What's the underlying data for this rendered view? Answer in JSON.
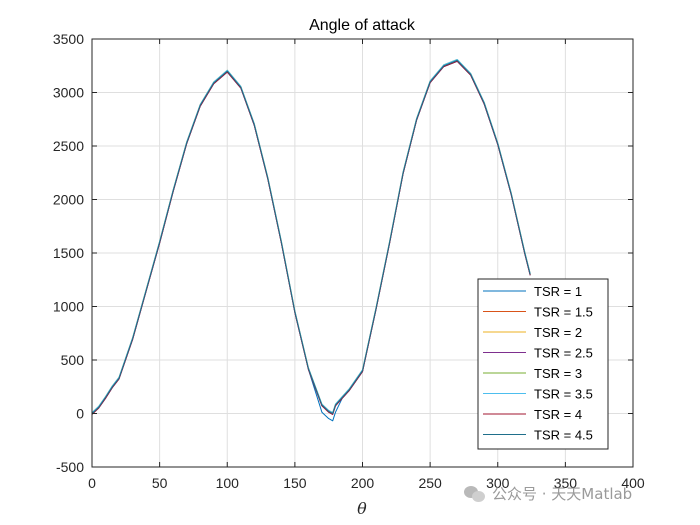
{
  "chart_data": {
    "type": "line",
    "title": "Angle of attack",
    "xlabel": "θ",
    "ylabel": "",
    "xlim": [
      0,
      400
    ],
    "ylim": [
      -500,
      3500
    ],
    "xticks": [
      0,
      50,
      100,
      150,
      200,
      250,
      300,
      350,
      400
    ],
    "yticks": [
      -500,
      0,
      500,
      1000,
      1500,
      2000,
      2500,
      3000,
      3500
    ],
    "grid": true,
    "legend_position": "bottom-right",
    "series": [
      {
        "name": "TSR = 1",
        "color": "#0072BD"
      },
      {
        "name": "TSR = 1.5",
        "color": "#D95319"
      },
      {
        "name": "TSR = 2",
        "color": "#EDB120"
      },
      {
        "name": "TSR = 2.5",
        "color": "#7E2F8E"
      },
      {
        "name": "TSR = 3",
        "color": "#77AC30"
      },
      {
        "name": "TSR = 3.5",
        "color": "#4DBEEE"
      },
      {
        "name": "TSR = 4",
        "color": "#A2142F"
      },
      {
        "name": "TSR = 4.5",
        "color": "#1F6F8B"
      }
    ],
    "curve": {
      "x": [
        0,
        5,
        10,
        15,
        20,
        30,
        40,
        50,
        60,
        70,
        80,
        90,
        100,
        110,
        120,
        130,
        140,
        150,
        160,
        170,
        175,
        178,
        180,
        185,
        190,
        200,
        210,
        220,
        230,
        240,
        250,
        260,
        270,
        280,
        290,
        300,
        310,
        320,
        324
      ],
      "y": [
        0,
        60,
        150,
        250,
        330,
        700,
        1150,
        1600,
        2080,
        2530,
        2880,
        3090,
        3200,
        3050,
        2700,
        2200,
        1600,
        950,
        420,
        80,
        20,
        0,
        80,
        150,
        220,
        400,
        980,
        1600,
        2250,
        2750,
        3100,
        3250,
        3300,
        3170,
        2900,
        2520,
        2050,
        1500,
        1300
      ]
    }
  },
  "watermark": {
    "text": "公众号 · 天天Matlab",
    "icon": "wechat-icon"
  }
}
